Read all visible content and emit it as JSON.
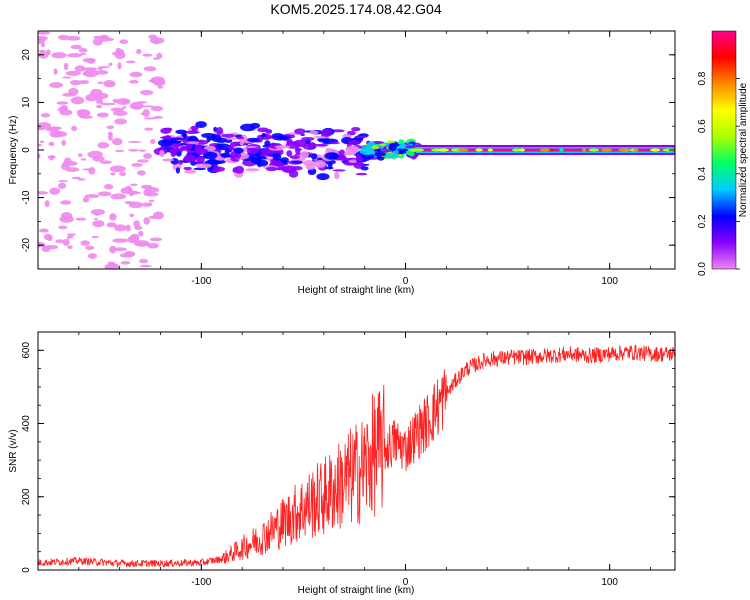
{
  "chart_data": [
    {
      "type": "heatmap",
      "title": "KOM5.2025.174.08.42.G04",
      "xlabel": "Height of straight line (km)",
      "ylabel": "Frequency (Hz)",
      "xlim": [
        -180,
        132
      ],
      "ylim": [
        -25,
        25
      ],
      "xticks": [
        "-100",
        "0",
        "100"
      ],
      "yticks": [
        "20",
        "10",
        "0",
        "-10",
        "-20"
      ],
      "colorbar": {
        "label": "Normalized spectral amplitude",
        "range": [
          0,
          1
        ],
        "ticks": [
          "0.0",
          "0.2",
          "0.4",
          "0.6",
          "0.8"
        ],
        "colors": [
          "#ee88ee",
          "#8800ff",
          "#0000ff",
          "#00ccff",
          "#00ff66",
          "#aaff00",
          "#ffff00",
          "#ff8800",
          "#ff0000",
          "#ff0088"
        ]
      },
      "features": [
        {
          "segment": "noise",
          "x": [
            -180,
            -120
          ],
          "amplitude": 0.05,
          "frequency_spread": 25
        },
        {
          "segment": "dispersed",
          "x": [
            -120,
            -20
          ],
          "amplitude": 0.15,
          "frequency_spread": 6
        },
        {
          "segment": "transition",
          "x": [
            -20,
            5
          ],
          "amplitude": 0.3,
          "frequency_spread": 2
        },
        {
          "segment": "carrier",
          "x": [
            5,
            132
          ],
          "frequency": 0,
          "amplitude": 0.95
        }
      ]
    },
    {
      "type": "line",
      "title": "",
      "xlabel": "Height of straight line (km)",
      "ylabel": "SNR (v/v)",
      "xlim": [
        -180,
        132
      ],
      "ylim": [
        0,
        650
      ],
      "xticks": [
        "-100",
        "0",
        "100"
      ],
      "yticks": [
        "0",
        "200",
        "400",
        "600"
      ],
      "color": "#ff2020",
      "x": [
        -180,
        -160,
        -140,
        -120,
        -100,
        -90,
        -80,
        -70,
        -60,
        -50,
        -40,
        -30,
        -20,
        -15,
        -10,
        -5,
        0,
        5,
        10,
        15,
        20,
        25,
        30,
        40,
        50,
        60,
        70,
        80,
        90,
        100,
        110,
        120,
        132
      ],
      "values": [
        20,
        25,
        18,
        18,
        20,
        30,
        60,
        90,
        130,
        170,
        200,
        240,
        280,
        320,
        330,
        350,
        330,
        370,
        400,
        440,
        480,
        520,
        550,
        575,
        580,
        582,
        585,
        590,
        585,
        590,
        595,
        590,
        590
      ]
    }
  ]
}
